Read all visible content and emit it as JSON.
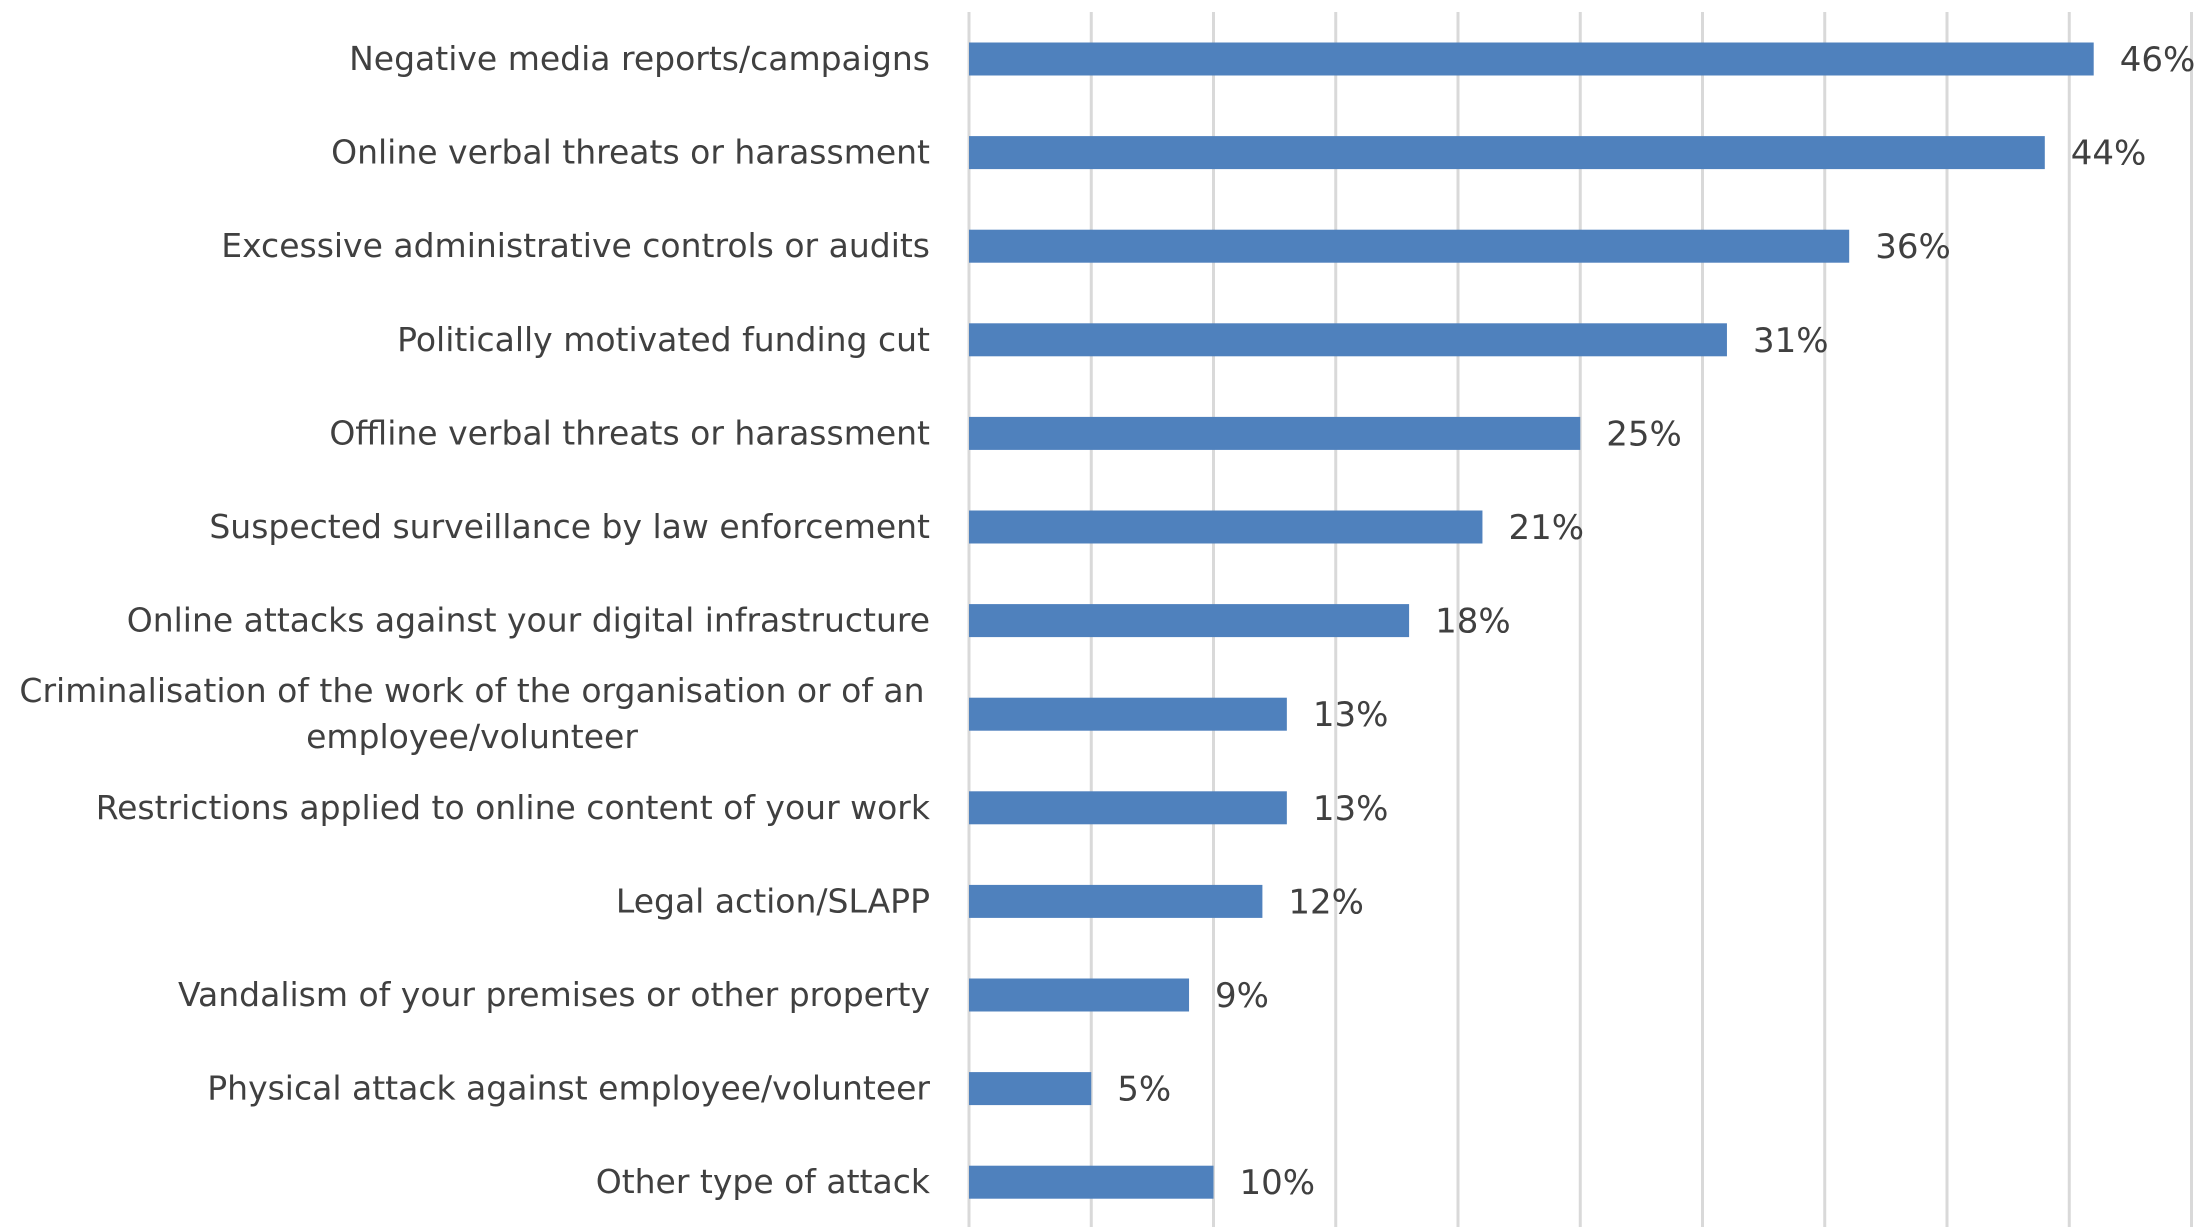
{
  "chart_data": {
    "type": "bar",
    "orientation": "horizontal",
    "categories": [
      "Negative media reports/campaigns",
      "Online verbal threats or harassment",
      "Excessive administrative controls or audits",
      "Politically motivated funding cut",
      "Offline verbal threats or harassment",
      "Suspected surveillance by law enforcement",
      "Online attacks against your digital infrastructure",
      "Criminalisation of the work of the organisation or of an employee/volunteer",
      "Restrictions applied to online content of your work",
      "Legal action/SLAPP",
      "Vandalism of your premises or other property",
      "Physical attack against employee/volunteer",
      "Other type of attack"
    ],
    "category_lines": [
      [
        "Negative media reports/campaigns"
      ],
      [
        "Online verbal threats or harassment"
      ],
      [
        "Excessive administrative controls or audits"
      ],
      [
        "Politically motivated funding cut"
      ],
      [
        "Offline verbal threats or harassment"
      ],
      [
        "Suspected surveillance by law enforcement"
      ],
      [
        "Online attacks against your digital infrastructure"
      ],
      [
        "Criminalisation of the work of the organisation or of an",
        "employee/volunteer"
      ],
      [
        "Restrictions applied to online content of your work"
      ],
      [
        "Legal action/SLAPP"
      ],
      [
        "Vandalism of your premises or other property"
      ],
      [
        "Physical attack against employee/volunteer"
      ],
      [
        "Other type of attack"
      ]
    ],
    "values": [
      46,
      44,
      36,
      31,
      25,
      21,
      18,
      13,
      13,
      12,
      9,
      5,
      10
    ],
    "value_labels": [
      "46%",
      "44%",
      "36%",
      "31%",
      "25%",
      "21%",
      "18%",
      "13%",
      "13%",
      "12%",
      "9%",
      "5%",
      "10%"
    ],
    "xlim": [
      0,
      50
    ],
    "x_gridline_step": 5,
    "grid": true,
    "legend": "none",
    "bar_color": "#4f81bd",
    "text_color": "#404040",
    "grid_color": "#d9d9d9"
  }
}
